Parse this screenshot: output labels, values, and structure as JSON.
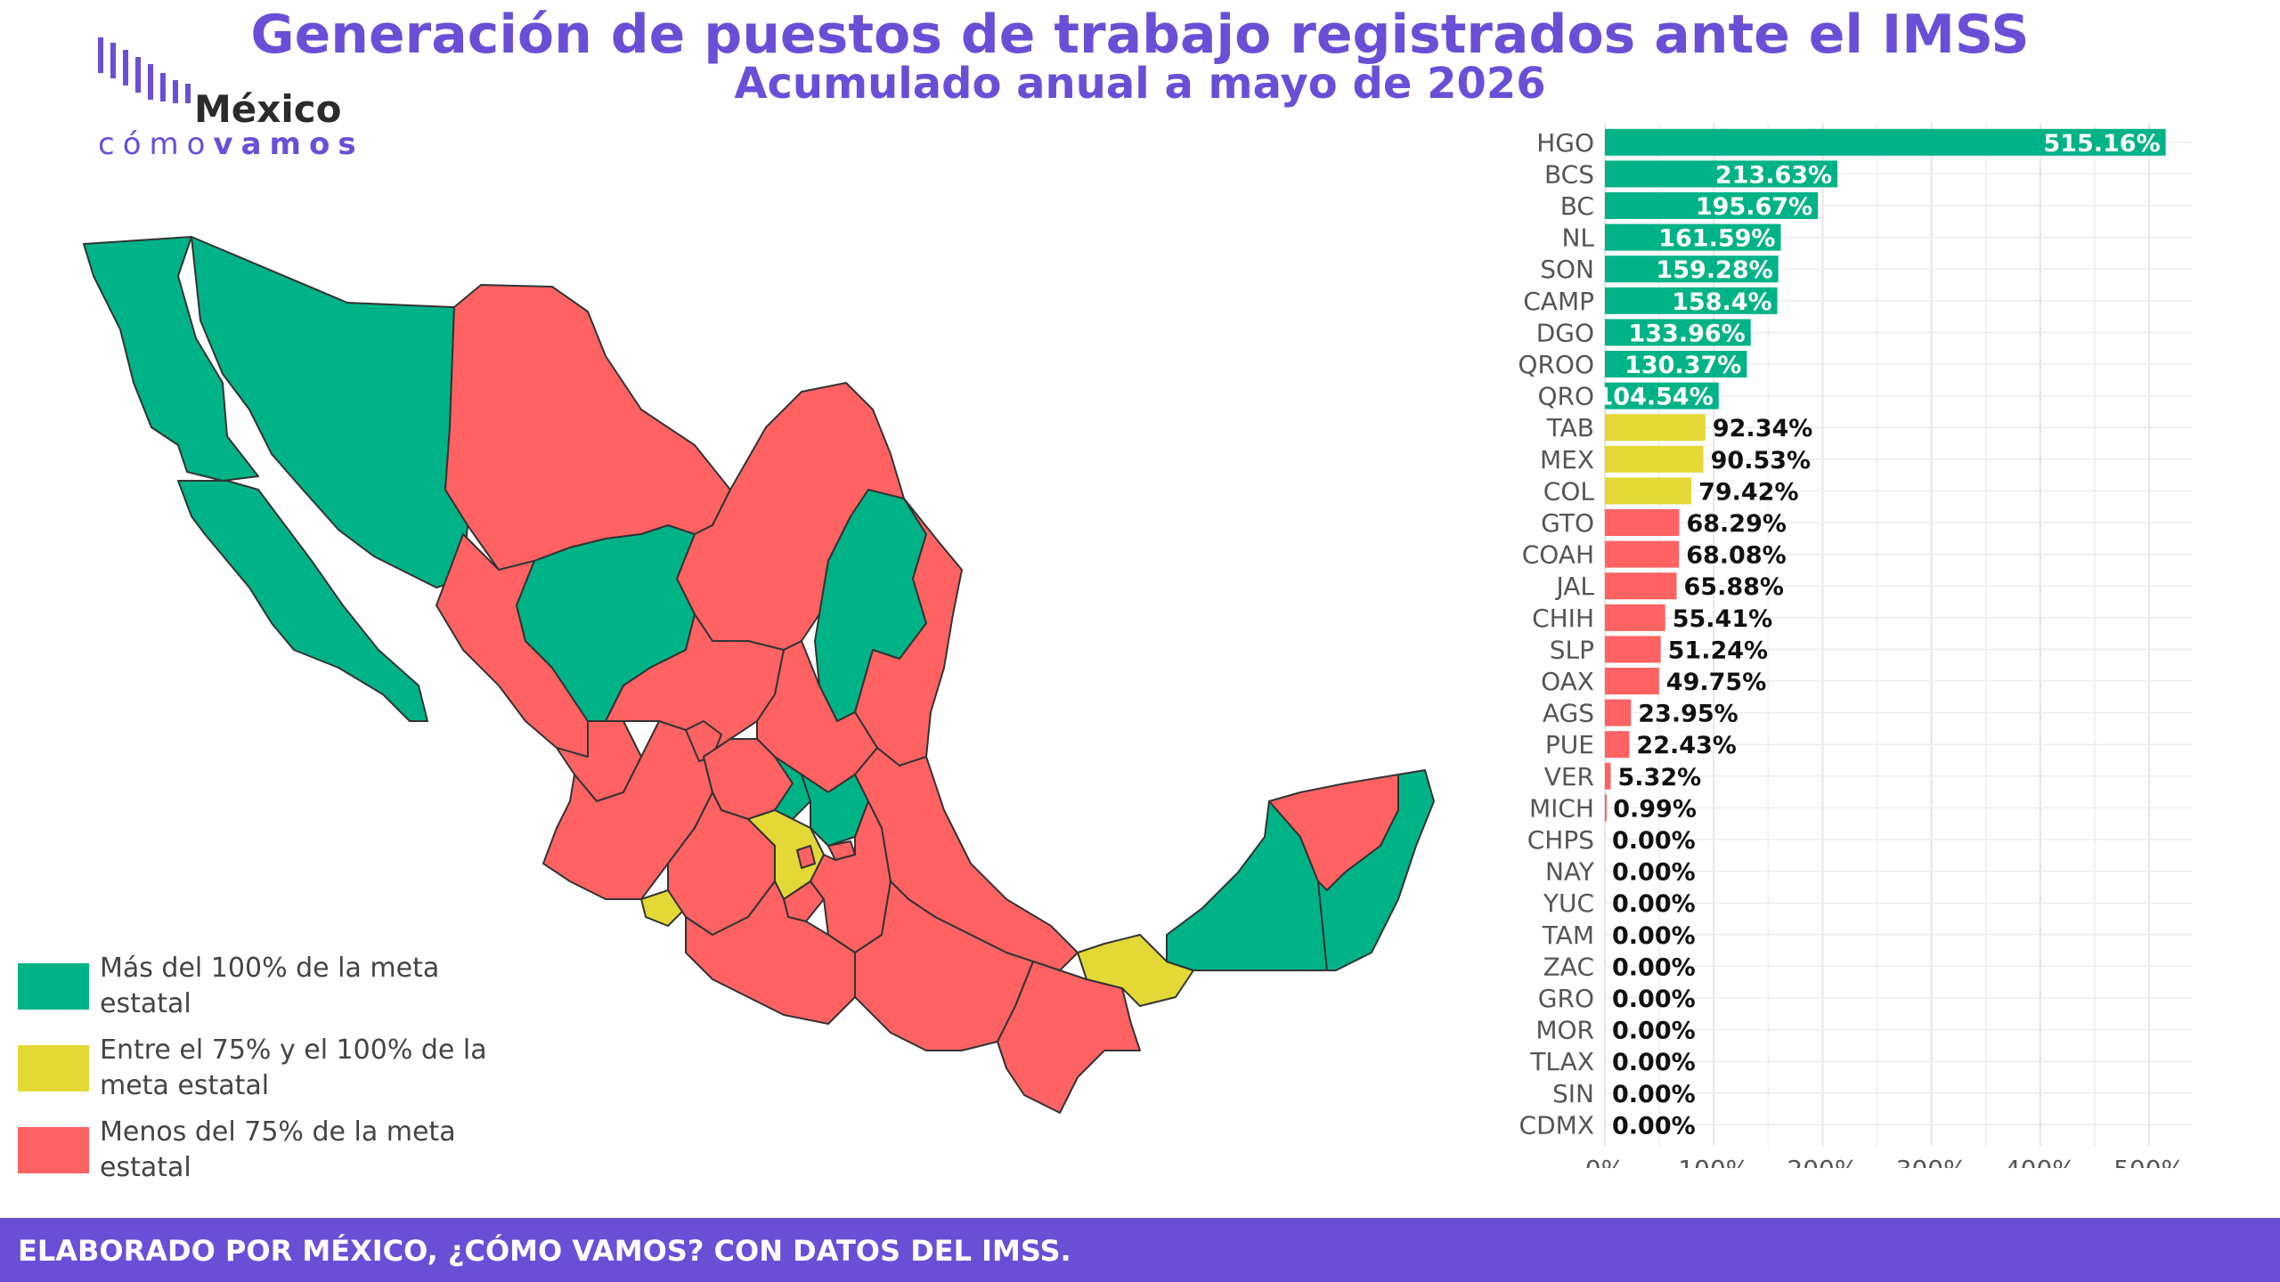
{
  "header": {
    "title": "Generación de puestos de trabajo registrados ante el IMSS",
    "subtitle": "Acumulado anual a mayo de 2026"
  },
  "logo": {
    "name": "México",
    "tag_light": "cómo",
    "tag_bold": "vamos"
  },
  "colors": {
    "green": "#00b386",
    "yellow": "#e3d836",
    "red": "#ff6262",
    "purple": "#6a4fd6"
  },
  "legend": [
    {
      "label": "Más del 100% de la meta estatal",
      "color": "#00b386"
    },
    {
      "label": "Entre el 75% y el 100% de la meta estatal",
      "color": "#e3d836"
    },
    {
      "label": "Menos del 75% de la meta estatal",
      "color": "#ff6262"
    }
  ],
  "chart_data": {
    "type": "bar",
    "orientation": "horizontal",
    "categories": [
      "HGO",
      "BCS",
      "BC",
      "NL",
      "SON",
      "CAMP",
      "DGO",
      "QROO",
      "QRO",
      "TAB",
      "MEX",
      "COL",
      "GTO",
      "COAH",
      "JAL",
      "CHIH",
      "SLP",
      "OAX",
      "AGS",
      "PUE",
      "VER",
      "MICH",
      "CHPS",
      "NAY",
      "YUC",
      "TAM",
      "ZAC",
      "GRO",
      "MOR",
      "TLAX",
      "SIN",
      "CDMX"
    ],
    "values": [
      515.16,
      213.63,
      195.67,
      161.59,
      159.28,
      158.4,
      133.96,
      130.37,
      104.54,
      92.34,
      90.53,
      79.42,
      68.29,
      68.08,
      65.88,
      55.41,
      51.24,
      49.75,
      23.95,
      22.43,
      5.32,
      0.99,
      0,
      0,
      0,
      0,
      0,
      0,
      0,
      0,
      0,
      0
    ],
    "labels": [
      "515.16%",
      "213.63%",
      "195.67%",
      "161.59%",
      "159.28%",
      "158.4%",
      "133.96%",
      "130.37%",
      "104.54%",
      "92.34%",
      "90.53%",
      "79.42%",
      "68.29%",
      "68.08%",
      "65.88%",
      "55.41%",
      "51.24%",
      "49.75%",
      "23.95%",
      "22.43%",
      "5.32%",
      "0.99%",
      "0.00%",
      "0.00%",
      "0.00%",
      "0.00%",
      "0.00%",
      "0.00%",
      "0.00%",
      "0.00%",
      "0.00%",
      "0.00%"
    ],
    "xlim": [
      0,
      540
    ],
    "xticks": [
      0,
      100,
      200,
      300,
      400,
      500
    ],
    "xtick_labels": [
      "0%",
      "100%",
      "200%",
      "300%",
      "400%",
      "500%"
    ],
    "thresholds": {
      "green_above": 100,
      "yellow_above": 75
    },
    "grid": true
  },
  "footer": {
    "text": "ELABORADO POR MÉXICO, ¿CÓMO VAMOS? CON DATOS DEL IMSS."
  }
}
